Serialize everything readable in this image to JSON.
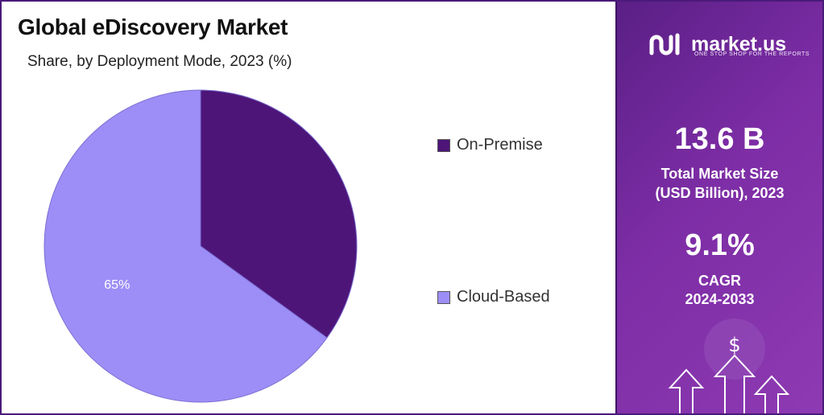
{
  "title": "Global eDiscovery Market",
  "subtitle": "Share, by Deployment Mode, 2023 (%)",
  "colors": {
    "on_premise": "#4e1579",
    "cloud_based": "#9d8ef7",
    "panel": "#7d2da5"
  },
  "chart_data": {
    "type": "pie",
    "title": "Global eDiscovery Market",
    "subtitle": "Share, by Deployment Mode, 2023 (%)",
    "categories": [
      "On-Premise",
      "Cloud-Based"
    ],
    "values": [
      35,
      65
    ],
    "data_labels": [
      "",
      "65%"
    ],
    "legend_position": "right"
  },
  "brand": {
    "name": "market.us",
    "tagline": "ONE STOP SHOP FOR THE REPORTS"
  },
  "stats": {
    "market_size_value": "13.6 B",
    "market_size_label_1": "Total Market Size",
    "market_size_label_2": "(USD Billion), 2023",
    "cagr_value": "9.1%",
    "cagr_label_1": "CAGR",
    "cagr_label_2": "2024-2033"
  },
  "icons": [
    "dollar-icon",
    "up-arrow-icon"
  ],
  "dollar_symbol": "$"
}
